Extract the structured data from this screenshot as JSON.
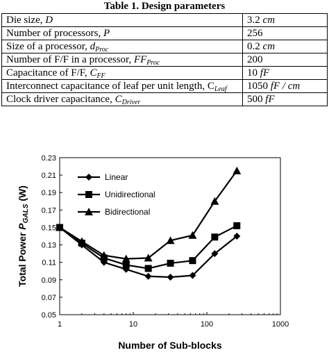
{
  "table": {
    "title": "Table 1. Design parameters",
    "rows": [
      {
        "name": "Die size, ",
        "sym": "D",
        "sub": "",
        "value": "3.2",
        "unit": "cm"
      },
      {
        "name": "Number of processors, ",
        "sym": "P",
        "sub": "",
        "value": "256",
        "unit": ""
      },
      {
        "name": "Size of a processor, ",
        "sym": "d",
        "sub": "Proc",
        "value": "0.2",
        "unit": "cm"
      },
      {
        "name": "Number of F/F in a processor, ",
        "sym": "FF",
        "sub": "Proc",
        "value": "200",
        "unit": ""
      },
      {
        "name": "Capacitance of F/F, ",
        "sym": "C",
        "sub": "FF",
        "value": "10",
        "unit": "fF"
      },
      {
        "name": "Interconnect capacitance of leaf per unit length, C",
        "sym": "",
        "sub": "Leaf",
        "value": "1050",
        "unit": "fF / cm"
      },
      {
        "name": "Clock driver capacitance, ",
        "sym": "C",
        "sub": "Driver",
        "value": "500",
        "unit": "fF"
      }
    ]
  },
  "chart_data": {
    "type": "line",
    "xscale": "log",
    "xlim": [
      1,
      1000
    ],
    "ylim": [
      0.05,
      0.23
    ],
    "xticks": [
      "1",
      "10",
      "100",
      "1000"
    ],
    "yticks": [
      "0.05",
      "0.07",
      "0.09",
      "0.11",
      "0.13",
      "0.15",
      "0.17",
      "0.19",
      "0.21",
      "0.23"
    ],
    "xlabel": "Number of Sub-blocks",
    "ylabel_prefix": "Total Power ",
    "ylabel_sym": "P",
    "ylabel_sub": "GALS",
    "ylabel_suffix": " (W)",
    "legend_position": "top-left",
    "x": [
      1,
      2,
      4,
      8,
      16,
      32,
      64,
      128,
      256
    ],
    "series": [
      {
        "name": "Linear",
        "marker": "diamond",
        "values": [
          0.15,
          0.13,
          0.11,
          0.102,
          0.094,
          0.093,
          0.095,
          0.12,
          0.14
        ]
      },
      {
        "name": "Unidirectional",
        "marker": "square",
        "values": [
          0.15,
          0.132,
          0.115,
          0.107,
          0.103,
          0.109,
          0.112,
          0.139,
          0.152
        ]
      },
      {
        "name": "Bidirectional",
        "marker": "triangle",
        "values": [
          0.15,
          0.134,
          0.118,
          0.114,
          0.115,
          0.135,
          0.141,
          0.18,
          0.215
        ]
      }
    ]
  }
}
